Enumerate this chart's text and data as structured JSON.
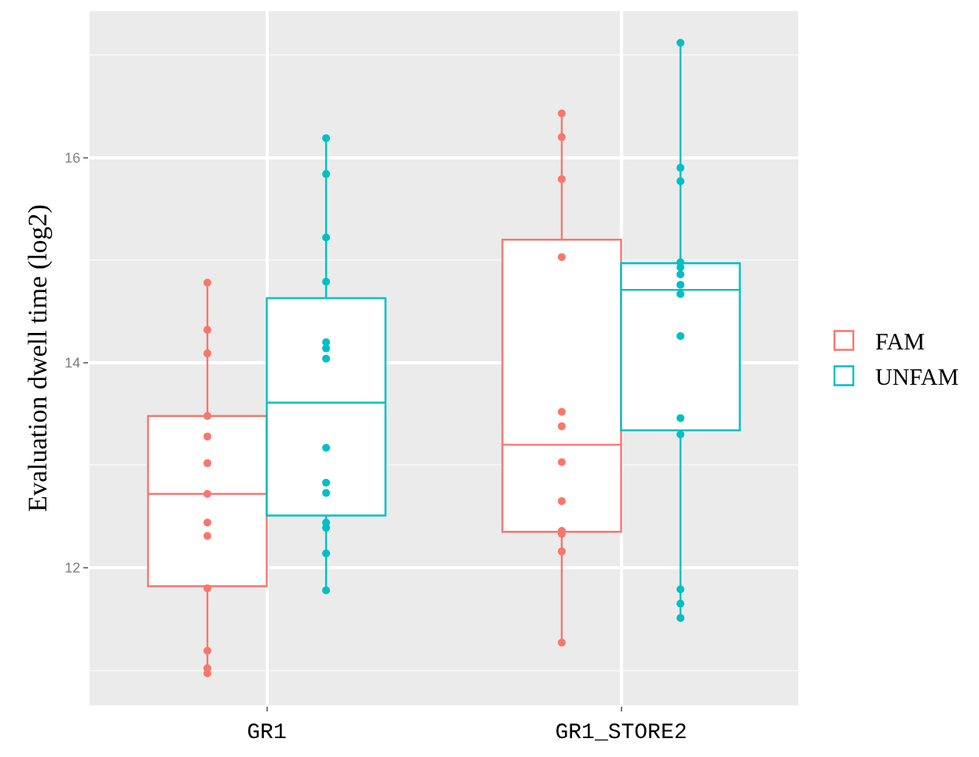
{
  "chart_data": {
    "type": "box",
    "ylabel": "Evaluation dwell time (log2)",
    "categories": [
      "GR1",
      "GR1_STORE2"
    ],
    "series": [
      {
        "name": "FAM",
        "color": "#f8766d",
        "boxes": [
          {
            "low": 10.97,
            "q1": 11.82,
            "median": 12.72,
            "q3": 13.48,
            "high": 14.77
          },
          {
            "low": 11.27,
            "q1": 12.35,
            "median": 13.2,
            "q3": 15.2,
            "high": 16.42
          }
        ]
      },
      {
        "name": "UNFAM",
        "color": "#00bfc4",
        "boxes": [
          {
            "low": 11.78,
            "q1": 12.51,
            "median": 13.61,
            "q3": 14.63,
            "high": 16.18
          },
          {
            "low": 11.51,
            "q1": 13.34,
            "median": 14.71,
            "q3": 14.97,
            "high": 17.11
          }
        ]
      },
      {
        "type": "scatter",
        "color": "#f8766d",
        "marker": "circle",
        "x": [
          "GR1",
          "GR1",
          "GR1",
          "GR1",
          "GR1",
          "GR1",
          "GR1",
          "GR1",
          "GR1",
          "GR1",
          "GR1",
          "GR1",
          "GR1",
          "GR1_STORE2",
          "GR1_STORE2",
          "GR1_STORE2",
          "GR1_STORE2",
          "GR1_STORE2",
          "GR1_STORE2",
          "GR1_STORE2",
          "GR1_STORE2",
          "GR1_STORE2",
          "GR1_STORE2",
          "GR1_STORE2",
          "GR1_STORE2"
        ],
        "values": [
          14.78,
          14.09,
          14.32,
          13.28,
          13.48,
          13.02,
          12.72,
          12.44,
          12.31,
          11.8,
          11.19,
          10.97,
          11.02,
          16.2,
          15.79,
          15.03,
          16.43,
          13.52,
          13.38,
          13.03,
          12.65,
          12.36,
          12.16,
          12.33,
          11.27
        ]
      },
      {
        "type": "scatter",
        "color": "#00bfc4",
        "marker": "circle",
        "x": [
          "GR1",
          "GR1",
          "GR1",
          "GR1",
          "GR1",
          "GR1",
          "GR1",
          "GR1",
          "GR1",
          "GR1",
          "GR1",
          "GR1",
          "GR1",
          "GR1",
          "GR1_STORE2",
          "GR1_STORE2",
          "GR1_STORE2",
          "GR1_STORE2",
          "GR1_STORE2",
          "GR1_STORE2",
          "GR1_STORE2",
          "GR1_STORE2",
          "GR1_STORE2",
          "GR1_STORE2",
          "GR1_STORE2",
          "GR1_STORE2",
          "GR1_STORE2",
          "GR1_STORE2"
        ],
        "values": [
          15.22,
          14.79,
          14.2,
          14.04,
          14.14,
          12.83,
          12.73,
          16.19,
          15.84,
          13.17,
          12.44,
          12.39,
          12.14,
          11.78,
          17.12,
          14.98,
          14.76,
          14.26,
          13.46,
          11.79,
          11.65,
          11.51,
          14.93,
          15.9,
          15.77,
          14.67,
          14.86,
          13.3
        ]
      }
    ],
    "ylim": [
      10.66,
      17.43
    ],
    "yticks": [
      12,
      14,
      16
    ],
    "grid": true,
    "legend": "right"
  }
}
